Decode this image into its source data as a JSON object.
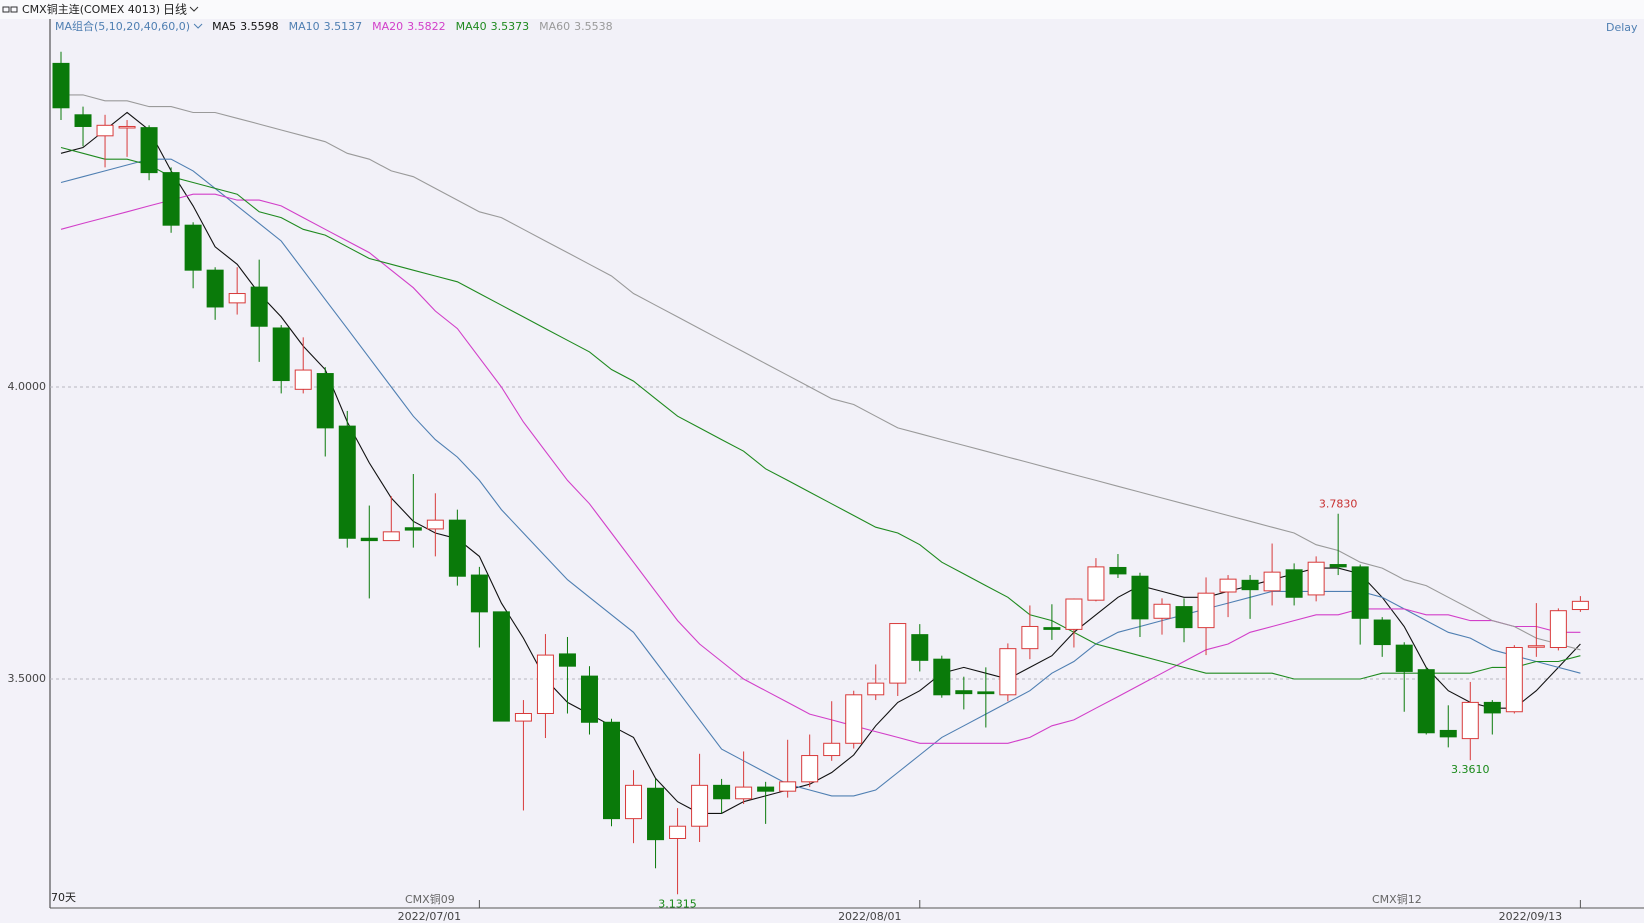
{
  "chart_data": {
    "type": "candlestick",
    "title": "CMX铜主连(COMEX 4013)",
    "period": "日线",
    "ma_group": "MA组合(5,10,20,40,60,0)",
    "status": "Delay",
    "period_label": "70天",
    "contract_labels": [
      "CMX铜09",
      "CMX铜12"
    ],
    "up_color": "#d83a3a",
    "down_color": "#0a7a0a",
    "grid": true,
    "ylim": [
      3.108,
      4.63
    ],
    "yticks": [
      {
        "value": 4.0,
        "label": "4.0000"
      },
      {
        "value": 3.5,
        "label": "3.5000"
      }
    ],
    "categories": [
      null,
      null,
      null,
      null,
      null,
      null,
      null,
      null,
      null,
      null,
      null,
      null,
      null,
      null,
      null,
      null,
      null,
      null,
      null,
      "2022/07/01",
      null,
      null,
      null,
      null,
      null,
      null,
      null,
      null,
      null,
      null,
      null,
      null,
      null,
      null,
      null,
      null,
      null,
      null,
      null,
      "2022/08/01",
      null,
      null,
      null,
      null,
      null,
      null,
      null,
      null,
      null,
      null,
      null,
      null,
      null,
      null,
      null,
      null,
      null,
      null,
      null,
      null,
      null,
      null,
      null,
      null,
      null,
      null,
      null,
      null,
      null,
      "2022/09/13"
    ],
    "open": [
      4.554,
      4.466,
      4.43,
      4.444,
      4.444,
      4.367,
      4.277,
      4.2,
      4.144,
      4.171,
      4.101,
      3.996,
      4.023,
      3.933,
      3.741,
      3.737,
      3.759,
      3.757,
      3.772,
      3.678,
      3.615,
      3.428,
      3.441,
      3.543,
      3.505,
      3.426,
      3.261,
      3.313,
      3.227,
      3.248,
      3.318,
      3.295,
      3.315,
      3.308,
      3.324,
      3.369,
      3.39,
      3.473,
      3.493,
      3.576,
      3.534,
      3.48,
      3.478,
      3.473,
      3.552,
      3.588,
      3.585,
      3.635,
      3.691,
      3.676,
      3.604,
      3.624,
      3.588,
      3.649,
      3.669,
      3.651,
      3.687,
      3.644,
      3.696,
      3.692,
      3.601,
      3.558,
      3.516,
      3.412,
      3.398,
      3.46,
      3.444,
      3.555,
      3.554,
      3.619
    ],
    "close": [
      4.478,
      4.446,
      4.448,
      4.446,
      4.367,
      4.277,
      4.2,
      4.137,
      4.16,
      4.104,
      4.011,
      4.029,
      3.93,
      3.741,
      3.737,
      3.752,
      3.755,
      3.772,
      3.676,
      3.615,
      3.428,
      3.441,
      3.541,
      3.522,
      3.426,
      3.261,
      3.318,
      3.225,
      3.248,
      3.318,
      3.295,
      3.315,
      3.308,
      3.324,
      3.369,
      3.39,
      3.473,
      3.493,
      3.595,
      3.532,
      3.473,
      3.475,
      3.475,
      3.552,
      3.59,
      3.585,
      3.637,
      3.692,
      3.68,
      3.603,
      3.628,
      3.588,
      3.647,
      3.671,
      3.653,
      3.683,
      3.64,
      3.7,
      3.692,
      3.604,
      3.559,
      3.513,
      3.408,
      3.401,
      3.46,
      3.442,
      3.554,
      3.557,
      3.617,
      3.633
    ],
    "high": [
      4.574,
      4.48,
      4.466,
      4.457,
      4.448,
      4.376,
      4.282,
      4.205,
      4.205,
      4.218,
      4.106,
      4.085,
      4.034,
      3.959,
      3.797,
      3.813,
      3.851,
      3.818,
      3.79,
      3.692,
      3.615,
      3.464,
      3.577,
      3.572,
      3.522,
      3.432,
      3.344,
      3.329,
      3.279,
      3.372,
      3.329,
      3.376,
      3.324,
      3.396,
      3.405,
      3.462,
      3.48,
      3.525,
      3.595,
      3.594,
      3.54,
      3.504,
      3.52,
      3.561,
      3.626,
      3.628,
      3.638,
      3.707,
      3.714,
      3.682,
      3.638,
      3.638,
      3.674,
      3.678,
      3.678,
      3.732,
      3.698,
      3.71,
      3.783,
      3.696,
      3.606,
      3.563,
      3.52,
      3.455,
      3.495,
      3.464,
      3.558,
      3.63,
      3.621,
      3.642
    ],
    "low": [
      4.457,
      4.412,
      4.376,
      4.394,
      4.354,
      4.264,
      4.169,
      4.115,
      4.124,
      4.043,
      3.989,
      3.989,
      3.881,
      3.725,
      3.638,
      3.737,
      3.725,
      3.71,
      3.66,
      3.554,
      3.428,
      3.275,
      3.399,
      3.441,
      3.405,
      3.248,
      3.219,
      3.176,
      3.1315,
      3.221,
      3.27,
      3.286,
      3.252,
      3.297,
      3.315,
      3.36,
      3.381,
      3.464,
      3.471,
      3.513,
      3.468,
      3.448,
      3.417,
      3.462,
      3.534,
      3.567,
      3.554,
      3.633,
      3.673,
      3.572,
      3.576,
      3.563,
      3.541,
      3.606,
      3.603,
      3.626,
      3.626,
      3.633,
      3.678,
      3.559,
      3.538,
      3.444,
      3.405,
      3.383,
      3.361,
      3.405,
      3.441,
      3.538,
      3.549,
      3.615
    ],
    "annotations": [
      {
        "value": 3.783,
        "label": "3.7830",
        "side": "high",
        "color": "#c83030"
      },
      {
        "value": 3.361,
        "label": "3.3610",
        "side": "low",
        "color": "#1a8a1a"
      },
      {
        "value": 3.1315,
        "label": "3.1315",
        "side": "low",
        "color": "#1a8a1a"
      }
    ],
    "ma": [
      {
        "name": "MA5",
        "last": 3.5598,
        "color": "#111111",
        "values": [
          4.4,
          4.41,
          4.44,
          4.47,
          4.44,
          4.37,
          4.31,
          4.24,
          4.21,
          4.16,
          4.12,
          4.07,
          4.03,
          3.94,
          3.87,
          3.81,
          3.77,
          3.75,
          3.74,
          3.71,
          3.63,
          3.57,
          3.5,
          3.46,
          3.44,
          3.42,
          3.4,
          3.33,
          3.29,
          3.27,
          3.27,
          3.29,
          3.3,
          3.31,
          3.32,
          3.34,
          3.37,
          3.42,
          3.46,
          3.48,
          3.51,
          3.52,
          3.51,
          3.5,
          3.52,
          3.54,
          3.58,
          3.61,
          3.64,
          3.66,
          3.65,
          3.64,
          3.64,
          3.65,
          3.66,
          3.67,
          3.68,
          3.69,
          3.69,
          3.68,
          3.64,
          3.59,
          3.52,
          3.48,
          3.46,
          3.45,
          3.45,
          3.48,
          3.52,
          3.56
        ]
      },
      {
        "name": "MA10",
        "last": 3.5137,
        "color": "#4f7fb2",
        "values": [
          4.35,
          4.36,
          4.37,
          4.38,
          4.39,
          4.39,
          4.37,
          4.34,
          4.31,
          4.28,
          4.25,
          4.2,
          4.15,
          4.1,
          4.05,
          4.0,
          3.95,
          3.91,
          3.88,
          3.84,
          3.79,
          3.75,
          3.71,
          3.67,
          3.64,
          3.61,
          3.58,
          3.53,
          3.48,
          3.43,
          3.38,
          3.36,
          3.34,
          3.32,
          3.31,
          3.3,
          3.3,
          3.31,
          3.34,
          3.37,
          3.4,
          3.42,
          3.44,
          3.46,
          3.48,
          3.51,
          3.53,
          3.56,
          3.58,
          3.59,
          3.6,
          3.61,
          3.62,
          3.63,
          3.64,
          3.65,
          3.65,
          3.65,
          3.65,
          3.65,
          3.64,
          3.62,
          3.6,
          3.58,
          3.57,
          3.55,
          3.54,
          3.53,
          3.52,
          3.51
        ]
      },
      {
        "name": "MA20",
        "last": 3.5822,
        "color": "#d23fc9",
        "values": [
          4.27,
          4.28,
          4.29,
          4.3,
          4.31,
          4.32,
          4.33,
          4.33,
          4.32,
          4.32,
          4.31,
          4.29,
          4.27,
          4.25,
          4.23,
          4.2,
          4.17,
          4.13,
          4.1,
          4.05,
          4.0,
          3.94,
          3.89,
          3.84,
          3.8,
          3.75,
          3.7,
          3.65,
          3.6,
          3.56,
          3.53,
          3.5,
          3.48,
          3.46,
          3.44,
          3.43,
          3.42,
          3.41,
          3.4,
          3.39,
          3.39,
          3.39,
          3.39,
          3.39,
          3.4,
          3.42,
          3.43,
          3.45,
          3.47,
          3.49,
          3.51,
          3.53,
          3.55,
          3.56,
          3.58,
          3.59,
          3.6,
          3.61,
          3.61,
          3.62,
          3.62,
          3.62,
          3.61,
          3.61,
          3.6,
          3.6,
          3.59,
          3.59,
          3.58,
          3.58
        ]
      },
      {
        "name": "MA40",
        "last": 3.5373,
        "color": "#1f8a1f",
        "values": [
          4.41,
          4.4,
          4.39,
          4.39,
          4.38,
          4.36,
          4.35,
          4.34,
          4.33,
          4.3,
          4.29,
          4.27,
          4.26,
          4.24,
          4.22,
          4.21,
          4.2,
          4.19,
          4.18,
          4.16,
          4.14,
          4.12,
          4.1,
          4.08,
          4.06,
          4.03,
          4.01,
          3.98,
          3.95,
          3.93,
          3.91,
          3.89,
          3.86,
          3.84,
          3.82,
          3.8,
          3.78,
          3.76,
          3.75,
          3.73,
          3.7,
          3.68,
          3.66,
          3.64,
          3.61,
          3.6,
          3.58,
          3.56,
          3.55,
          3.54,
          3.53,
          3.52,
          3.51,
          3.51,
          3.51,
          3.51,
          3.5,
          3.5,
          3.5,
          3.5,
          3.51,
          3.51,
          3.51,
          3.51,
          3.51,
          3.52,
          3.52,
          3.53,
          3.53,
          3.54
        ]
      },
      {
        "name": "MA60",
        "last": 3.5538,
        "color": "#9a9a9a",
        "values": [
          4.5,
          4.5,
          4.49,
          4.49,
          4.48,
          4.48,
          4.47,
          4.47,
          4.46,
          4.45,
          4.44,
          4.43,
          4.42,
          4.4,
          4.39,
          4.37,
          4.36,
          4.34,
          4.32,
          4.3,
          4.29,
          4.27,
          4.25,
          4.23,
          4.21,
          4.19,
          4.16,
          4.14,
          4.12,
          4.1,
          4.08,
          4.06,
          4.04,
          4.02,
          4.0,
          3.98,
          3.97,
          3.95,
          3.93,
          3.92,
          3.91,
          3.9,
          3.89,
          3.88,
          3.87,
          3.86,
          3.85,
          3.84,
          3.83,
          3.82,
          3.81,
          3.8,
          3.79,
          3.78,
          3.77,
          3.76,
          3.75,
          3.73,
          3.72,
          3.7,
          3.69,
          3.67,
          3.66,
          3.64,
          3.62,
          3.6,
          3.59,
          3.57,
          3.56,
          3.55
        ]
      }
    ]
  }
}
